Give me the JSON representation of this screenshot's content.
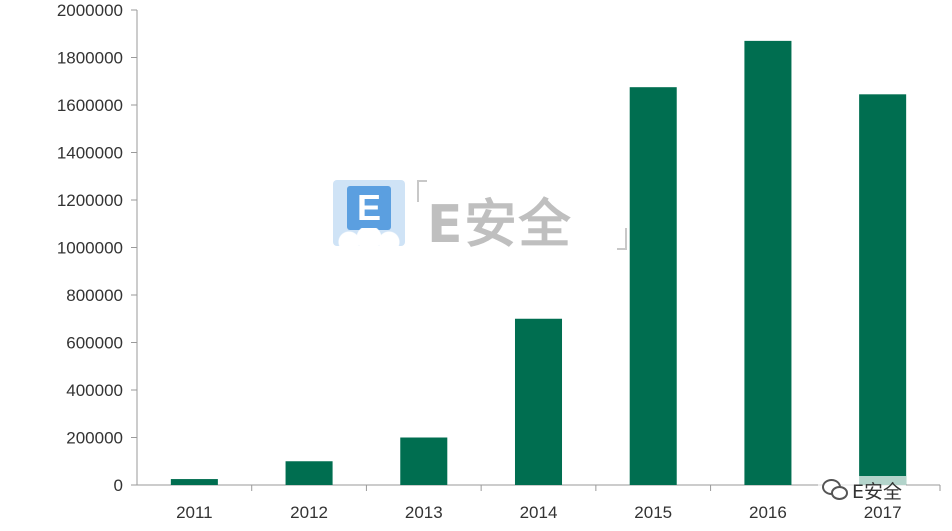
{
  "chart_data": {
    "type": "bar",
    "title": "",
    "xlabel": "",
    "ylabel": "",
    "categories": [
      "2011",
      "2012",
      "2013",
      "2014",
      "2015",
      "2016",
      "2017"
    ],
    "values": [
      25000,
      100000,
      200000,
      700000,
      1675000,
      1870000,
      1645000
    ],
    "ylim": [
      0,
      2000000
    ],
    "yticks": [
      "0",
      "200000",
      "400000",
      "600000",
      "800000",
      "1000000",
      "1200000",
      "1400000",
      "1600000",
      "1800000",
      "2000000"
    ],
    "bar_color": "#006e50",
    "grid": false,
    "legend": "none"
  },
  "watermark": {
    "badge_letter": "E",
    "text": "E安全",
    "badge_color": "#5b9fe0",
    "text_color": "#bfbfbf"
  },
  "account": {
    "icon": "wechat-icon",
    "name": "E安全"
  }
}
